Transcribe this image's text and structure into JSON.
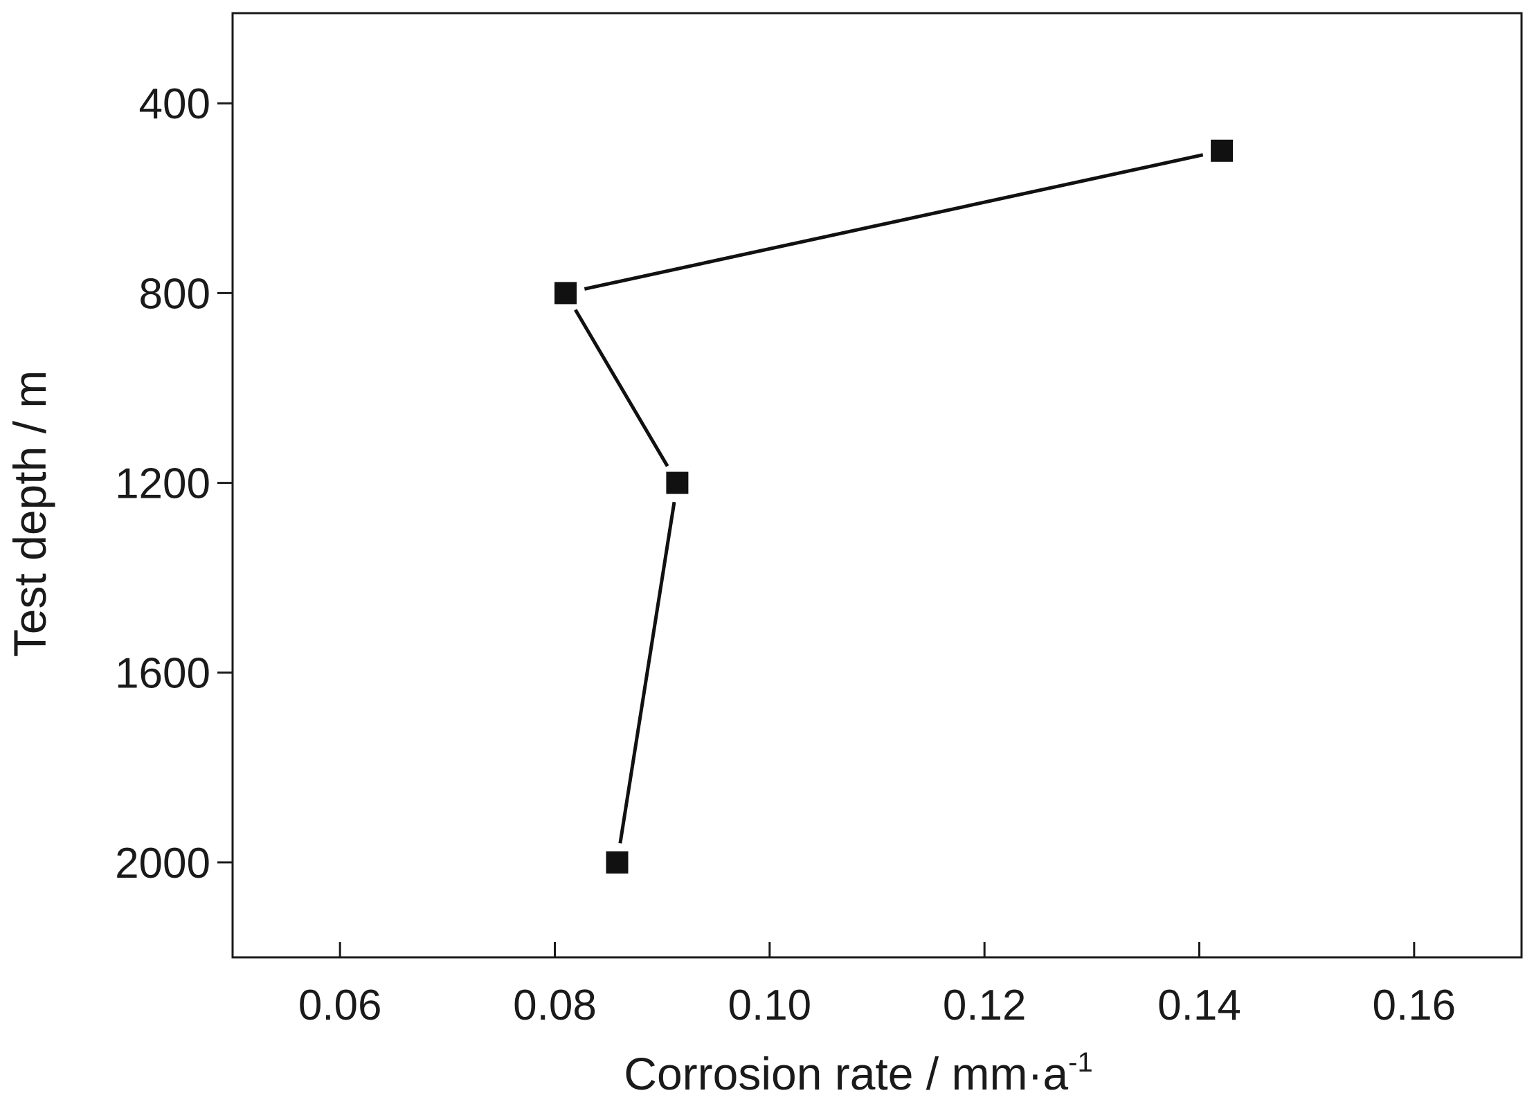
{
  "chart_data": {
    "type": "line",
    "xlabel": "Corrosion rate / mm·a",
    "xlabel_superscript": "-1",
    "ylabel": "Test depth / m",
    "xlim": [
      0.05,
      0.17
    ],
    "ylim": [
      210,
      2200
    ],
    "y_inverted": true,
    "x_ticks": [
      0.06,
      0.08,
      0.1,
      0.12,
      0.14,
      0.16
    ],
    "x_tick_labels": [
      "0.06",
      "0.08",
      "0.10",
      "0.12",
      "0.14",
      "0.16"
    ],
    "y_ticks": [
      400,
      800,
      1200,
      1600,
      2000
    ],
    "y_tick_labels": [
      "400",
      "800",
      "1200",
      "1600",
      "2000"
    ],
    "grid": false,
    "series": [
      {
        "x": [
          0.1421,
          0.081,
          0.0914,
          0.0858
        ],
        "y": [
          500,
          800,
          1200,
          2000
        ],
        "marker": "square",
        "color": "#111111"
      }
    ]
  }
}
